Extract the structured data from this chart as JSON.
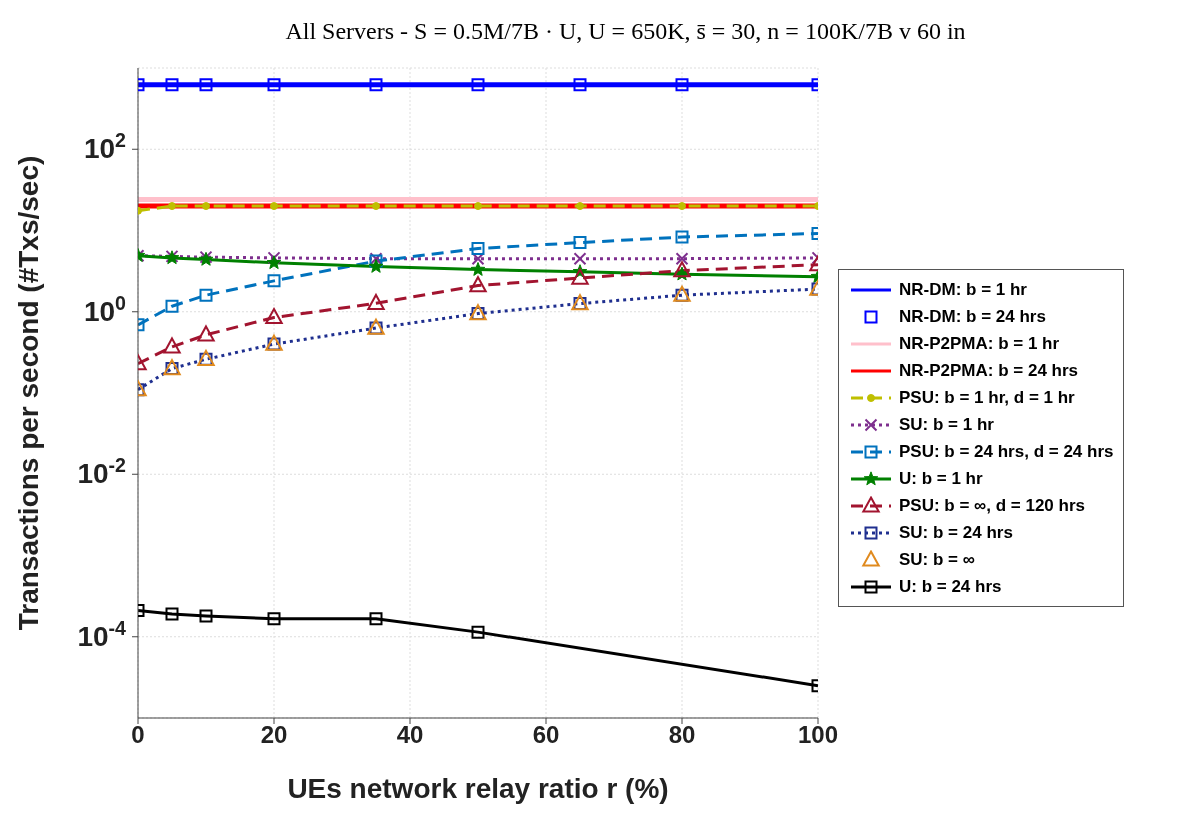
{
  "chart_data": {
    "type": "line",
    "title": "All Servers - S = 0.5M/7B · U, U = 650K, s̄ = 30, n = 100K/7B      v     60     in",
    "xlabel": "UEs network relay ratio r (%)",
    "ylabel": "Transactions per second (#Txs/sec)",
    "x": [
      0,
      5,
      10,
      20,
      35,
      50,
      65,
      80,
      100
    ],
    "xlim": [
      0,
      100
    ],
    "xticks": [
      0,
      20,
      40,
      60,
      80,
      100
    ],
    "ylim": [
      1e-05,
      1000
    ],
    "yticks": [
      {
        "value": 0.0001,
        "label": "10$^{-4}$"
      },
      {
        "value": 0.01,
        "label": "10$^{-2}$"
      },
      {
        "value": 1,
        "label": "10$^{0}$"
      },
      {
        "value": 100,
        "label": "10$^{2}$"
      }
    ],
    "log": "y",
    "grid": true,
    "legend": "right",
    "series": [
      {
        "name": "NR-DM: b = 1 hr",
        "color": "#0000ff",
        "marker": "none",
        "line_style": "solid",
        "values": [
          620,
          620,
          620,
          620,
          620,
          620,
          620,
          620,
          620
        ]
      },
      {
        "name": "NR-DM: b = 24 hrs",
        "type": "scatter",
        "color": "#0000ff",
        "marker": "square",
        "values": [
          620,
          620,
          620,
          620,
          620,
          620,
          620,
          620,
          620
        ]
      },
      {
        "name": "NR-P2PMA: b = 1 hr",
        "color": "#ffc0cb",
        "marker": "none",
        "line_style": "solid",
        "values": [
          24,
          24,
          24,
          24,
          24,
          24,
          24,
          24,
          24
        ]
      },
      {
        "name": "NR-P2PMA: b = 24 hrs",
        "color": "#ff0000",
        "marker": "none",
        "line_style": "solid",
        "values": [
          20,
          20,
          20,
          20,
          20,
          20,
          20,
          20,
          20
        ]
      },
      {
        "name": "PSU: b = 1 hr, d = 1 hr",
        "color": "#bfbf00",
        "marker": "circle",
        "line_style": "dashed",
        "values": [
          17.5,
          20,
          20,
          20,
          20,
          20,
          20,
          20,
          20
        ]
      },
      {
        "name": "SU: b = 1 hr",
        "color": "#7e2f8e",
        "marker": "cross",
        "line_style": "dotted",
        "values": [
          4.9,
          4.8,
          4.7,
          4.6,
          4.5,
          4.5,
          4.5,
          4.5,
          4.6
        ]
      },
      {
        "name": "PSU: b = 24 hrs, d = 24 hrs",
        "color": "#0072bd",
        "marker": "square",
        "line_style": "dashed",
        "values": [
          0.69,
          1.17,
          1.6,
          2.4,
          4.2,
          6,
          7.1,
          8.3,
          9.2
        ]
      },
      {
        "name": "U: b = 1 hr",
        "color": "#008000",
        "marker": "star",
        "line_style": "solid",
        "values": [
          4.9,
          4.6,
          4.4,
          4,
          3.6,
          3.3,
          3.1,
          2.9,
          2.7
        ]
      },
      {
        "name": "PSU: b = ∞, d = 120 hrs",
        "color": "#a2142f",
        "marker": "triangle",
        "line_style": "dashed",
        "values": [
          0.23,
          0.37,
          0.52,
          0.85,
          1.27,
          2.1,
          2.6,
          3.2,
          3.8
        ]
      },
      {
        "name": "SU: b = 24 hrs",
        "color": "#1f2f8f",
        "marker": "square",
        "line_style": "dotted",
        "values": [
          0.11,
          0.2,
          0.26,
          0.4,
          0.63,
          0.95,
          1.26,
          1.6,
          1.9
        ]
      },
      {
        "name": "SU: b = ∞",
        "type": "scatter",
        "color": "#e08a1e",
        "marker": "triangle",
        "values": [
          0.11,
          0.2,
          0.26,
          0.4,
          0.63,
          0.95,
          1.26,
          1.6,
          1.9
        ]
      },
      {
        "name": "U: b = 24 hrs",
        "color": "#000000",
        "marker": "square",
        "line_style": "solid",
        "values": [
          0.00021,
          0.00019,
          0.00018,
          0.000167,
          0.000167,
          0.000114,
          null,
          null,
          2.5e-05
        ]
      }
    ]
  }
}
